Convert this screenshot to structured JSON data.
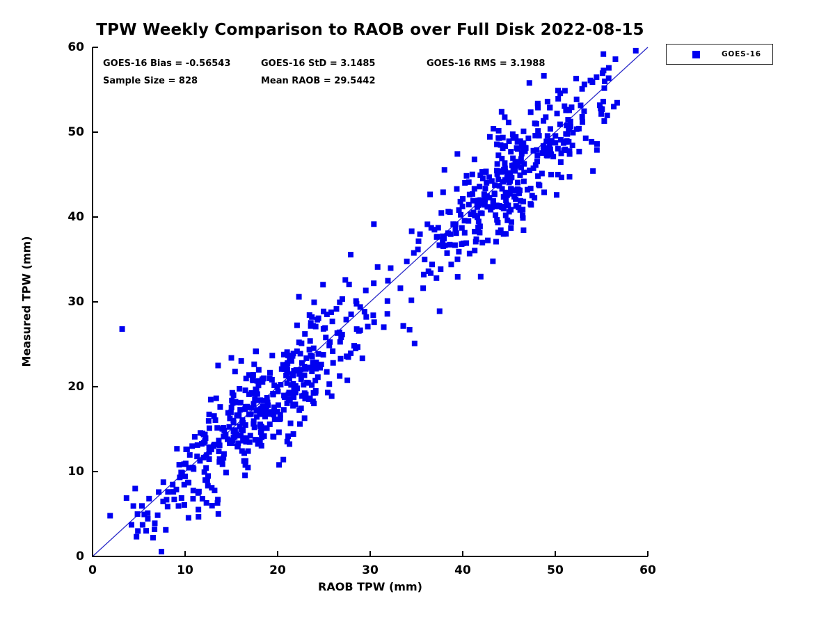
{
  "chart_data": {
    "type": "scatter",
    "title": "TPW Weekly Comparison to RAOB over Full Disk 2022-08-15",
    "xlabel": "RAOB TPW (mm)",
    "ylabel": "Measured TPW (mm)",
    "xlim": [
      0,
      60
    ],
    "ylim": [
      0,
      60
    ],
    "x_ticks": [
      0,
      10,
      20,
      30,
      40,
      50,
      60
    ],
    "y_ticks": [
      0,
      10,
      20,
      30,
      40,
      50,
      60
    ],
    "grid": false,
    "background": "#ffffff",
    "axis_color": "#000000",
    "legend": {
      "position": "top-right-outside",
      "entries": [
        {
          "label": "GOES-16",
          "marker": "square",
          "color": "#0000f0"
        }
      ]
    },
    "reference_line": {
      "from": [
        0,
        0
      ],
      "to": [
        60,
        60
      ],
      "color": "#2a2ac8"
    },
    "series": [
      {
        "name": "GOES-16",
        "marker": "square",
        "marker_color": "#0000f0",
        "n_points": 828,
        "relationship": {
          "bias": -0.56543,
          "std": 3.1485,
          "rms": 3.1988,
          "mean_x": 29.5442
        },
        "feature_points": [
          [
            3.2,
            26.8
          ],
          [
            1.9,
            4.8
          ],
          [
            4.9,
            3.0
          ],
          [
            13.5,
            6.3
          ],
          [
            15.0,
            23.4
          ],
          [
            22.3,
            30.6
          ],
          [
            34.8,
            25.1
          ],
          [
            37.5,
            28.9
          ],
          [
            44.2,
            52.4
          ],
          [
            47.2,
            55.8
          ],
          [
            50.3,
            54.9
          ],
          [
            52.9,
            55.1
          ],
          [
            54.5,
            47.9
          ],
          [
            55.2,
            59.2
          ],
          [
            56.5,
            58.6
          ],
          [
            58.7,
            59.6
          ]
        ],
        "generator": {
          "seed": 20220815,
          "x_components": [
            {
              "w": 0.48,
              "type": "gauss",
              "mean": 17.5,
              "sd": 6.0,
              "min": 3.0,
              "max": 31.0
            },
            {
              "w": 0.37,
              "type": "gauss",
              "mean": 45.0,
              "sd": 4.8,
              "min": 31.0,
              "max": 58.5
            },
            {
              "w": 0.15,
              "type": "uniform",
              "min": 4.0,
              "max": 57.0
            }
          ],
          "y_clip": [
            0.4,
            59.7
          ],
          "max_abs_residual": 9.5
        }
      }
    ],
    "stats_annotations": {
      "bias": "GOES-16 Bias = -0.56543",
      "std": "GOES-16 StD = 3.1485",
      "rms": "GOES-16 RMS = 3.1988",
      "sample": "Sample Size = 828",
      "mean": "Mean RAOB = 29.5442"
    }
  }
}
